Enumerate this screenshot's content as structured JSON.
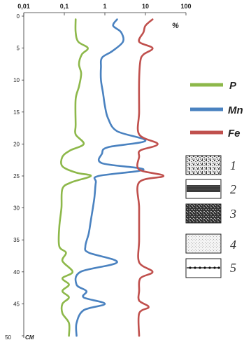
{
  "chart_data": {
    "type": "line",
    "x_scale": "log",
    "x_ticks": [
      "0,01",
      "0,1",
      "1",
      "10",
      "100"
    ],
    "x_tick_values": [
      0.01,
      0.1,
      1,
      10,
      100
    ],
    "x_unit": "%",
    "y_ticks": [
      "0",
      "5",
      "10",
      "15",
      "20",
      "25",
      "30",
      "35",
      "40",
      "45",
      "50"
    ],
    "y_tick_values": [
      0,
      5,
      10,
      15,
      20,
      25,
      30,
      35,
      40,
      45,
      50
    ],
    "y_unit": "CM",
    "xlim": [
      0.01,
      100
    ],
    "ylim": [
      0,
      50
    ],
    "series": [
      {
        "name": "P",
        "color": "#8db84a",
        "points": [
          [
            0.19,
            0.5
          ],
          [
            0.19,
            2.5
          ],
          [
            0.22,
            4
          ],
          [
            0.38,
            5
          ],
          [
            0.27,
            6
          ],
          [
            0.23,
            7.5
          ],
          [
            0.26,
            9
          ],
          [
            0.23,
            11
          ],
          [
            0.19,
            13
          ],
          [
            0.19,
            17
          ],
          [
            0.19,
            18.5
          ],
          [
            0.3,
            20
          ],
          [
            0.14,
            21
          ],
          [
            0.09,
            22
          ],
          [
            0.09,
            23.5
          ],
          [
            0.2,
            24.5
          ],
          [
            0.45,
            25
          ],
          [
            0.15,
            26
          ],
          [
            0.09,
            27
          ],
          [
            0.085,
            30
          ],
          [
            0.075,
            33
          ],
          [
            0.075,
            36
          ],
          [
            0.11,
            37
          ],
          [
            0.09,
            38.3
          ],
          [
            0.16,
            40
          ],
          [
            0.09,
            41
          ],
          [
            0.13,
            42
          ],
          [
            0.09,
            43
          ],
          [
            0.13,
            44
          ],
          [
            0.09,
            45
          ],
          [
            0.09,
            46.5
          ],
          [
            0.13,
            48
          ],
          [
            0.13,
            50
          ]
        ]
      },
      {
        "name": "Mn",
        "color": "#4a82c0",
        "points": [
          [
            2,
            0.5
          ],
          [
            1.6,
            1.5
          ],
          [
            2.5,
            2.5
          ],
          [
            2.8,
            4
          ],
          [
            1.5,
            5.5
          ],
          [
            0.85,
            6.5
          ],
          [
            0.8,
            8
          ],
          [
            0.8,
            10
          ],
          [
            0.9,
            12
          ],
          [
            1,
            14
          ],
          [
            1.2,
            16
          ],
          [
            2,
            18
          ],
          [
            10,
            19.5
          ],
          [
            1.2,
            20.5
          ],
          [
            0.85,
            21.5
          ],
          [
            0.85,
            23
          ],
          [
            9,
            24
          ],
          [
            0.7,
            25
          ],
          [
            0.6,
            26
          ],
          [
            0.55,
            28.5
          ],
          [
            0.45,
            32
          ],
          [
            0.4,
            34
          ],
          [
            0.33,
            36
          ],
          [
            0.4,
            37
          ],
          [
            2,
            38.5
          ],
          [
            0.25,
            40
          ],
          [
            0.2,
            42
          ],
          [
            0.35,
            43
          ],
          [
            0.3,
            44
          ],
          [
            1,
            45
          ],
          [
            0.3,
            46
          ],
          [
            0.2,
            48
          ],
          [
            0.2,
            50
          ]
        ]
      },
      {
        "name": "Fe",
        "color": "#c0504d",
        "points": [
          [
            15,
            0.5
          ],
          [
            10,
            1.5
          ],
          [
            9,
            2.5
          ],
          [
            7,
            4
          ],
          [
            15,
            5
          ],
          [
            9,
            6
          ],
          [
            7.5,
            7
          ],
          [
            7,
            10
          ],
          [
            7,
            15
          ],
          [
            7,
            18.5
          ],
          [
            20,
            20
          ],
          [
            7.5,
            21
          ],
          [
            7,
            22
          ],
          [
            7,
            24
          ],
          [
            28,
            25
          ],
          [
            7,
            26
          ],
          [
            7,
            30
          ],
          [
            7,
            35
          ],
          [
            7,
            38.5
          ],
          [
            15,
            40
          ],
          [
            7.5,
            41
          ],
          [
            7,
            43
          ],
          [
            7,
            44.5
          ],
          [
            12,
            45.5
          ],
          [
            7,
            46.5
          ],
          [
            7,
            50
          ]
        ]
      }
    ],
    "lithology": [
      "1",
      "2",
      "3",
      "4",
      "5"
    ]
  }
}
